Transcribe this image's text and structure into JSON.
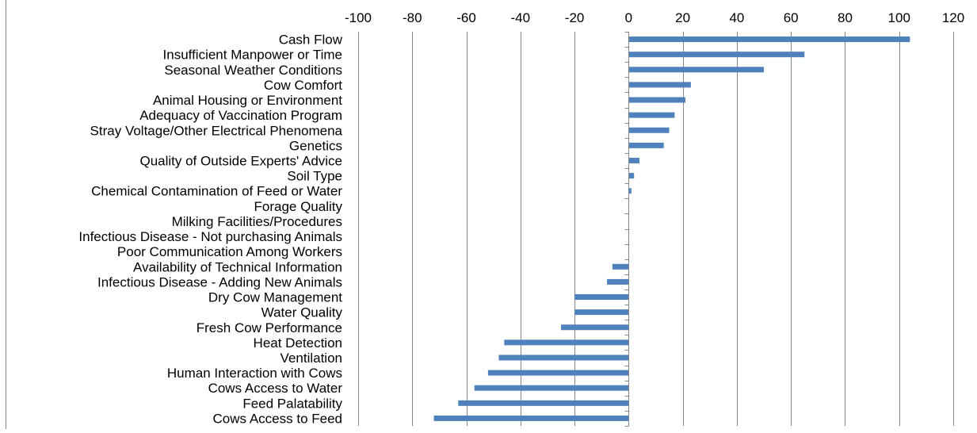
{
  "chart_data": {
    "type": "bar",
    "orientation": "horizontal",
    "categories": [
      "Cash Flow",
      "Insufficient Manpower or Time",
      "Seasonal Weather Conditions",
      "Cow Comfort",
      "Animal Housing or Environment",
      "Adequacy of Vaccination Program",
      "Stray Voltage/Other Electrical Phenomena",
      "Genetics",
      "Quality of Outside Experts' Advice",
      "Soil Type",
      "Chemical Contamination of Feed or Water",
      "Forage Quality",
      "Milking Facilities/Procedures",
      "Infectious Disease - Not purchasing Animals",
      "Poor Communication Among Workers",
      "Availability of Technical Information",
      "Infectious Disease - Adding New Animals",
      "Dry Cow Management",
      "Water Quality",
      "Fresh Cow Performance",
      "Heat Detection",
      "Ventilation",
      "Human Interaction with Cows",
      "Cows Access to Water",
      "Feed Palatability",
      "Cows Access to Feed"
    ],
    "values": [
      104,
      65,
      50,
      23,
      21,
      17,
      15,
      13,
      4,
      2,
      1,
      0,
      0,
      0,
      0,
      -6,
      -8,
      -20,
      -20,
      -25,
      -46,
      -48,
      -52,
      -57,
      -63,
      -72
    ],
    "xlim": [
      -100,
      120
    ],
    "xticks": [
      -100,
      -80,
      -60,
      -40,
      -20,
      0,
      20,
      40,
      60,
      80,
      100,
      120
    ],
    "xaxis_position": "top",
    "grid": "vertical",
    "legend": "none",
    "title": "",
    "xlabel": "",
    "ylabel": "",
    "colors": {
      "bar": "#4F81BD",
      "grid": "#868686",
      "axis": "#868686"
    }
  }
}
